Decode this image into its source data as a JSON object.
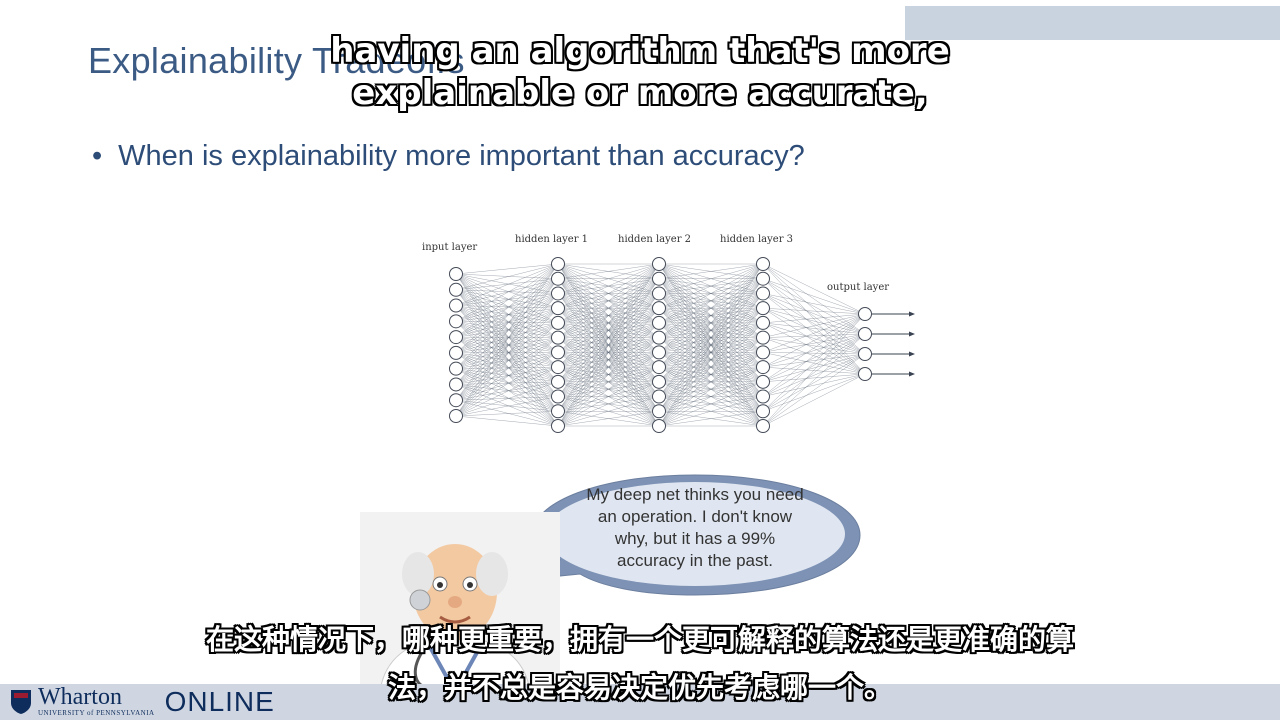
{
  "slide": {
    "title": "Explainability Tradeoffs",
    "bullet_symbol": "•",
    "bullet": "When is explainability more important than accuracy?"
  },
  "network": {
    "layers": [
      {
        "label": "input layer",
        "nodes": 10
      },
      {
        "label": "hidden layer 1",
        "nodes": 12
      },
      {
        "label": "hidden layer 2",
        "nodes": 12
      },
      {
        "label": "hidden layer 3",
        "nodes": 12
      },
      {
        "label": "output layer",
        "nodes": 4
      }
    ]
  },
  "speech_bubble": {
    "text": "My deep net thinks you need an operation. I don't know why, but it has a 99% accuracy in the past."
  },
  "subtitles": {
    "english_line1": "having an algorithm that's more",
    "english_line2": "explainable or more accurate,",
    "chinese_line1": "在这种情况下，哪种更重要，拥有一个更可解释的算法还是更准确的算",
    "chinese_line2": "法，并不总是容易决定优先考虑哪一个。"
  },
  "footer": {
    "brand": "Wharton",
    "university": "UNIVERSITY of PENNSYLVANIA",
    "online": "ONLINE"
  },
  "colors": {
    "title": "#3b5a84",
    "bullet": "#2d4d78",
    "accent_bar": "#c9d3e0",
    "footer_bar": "#cfd6e2",
    "bubble": "#7d92b5",
    "brand": "#0f2d5c"
  }
}
